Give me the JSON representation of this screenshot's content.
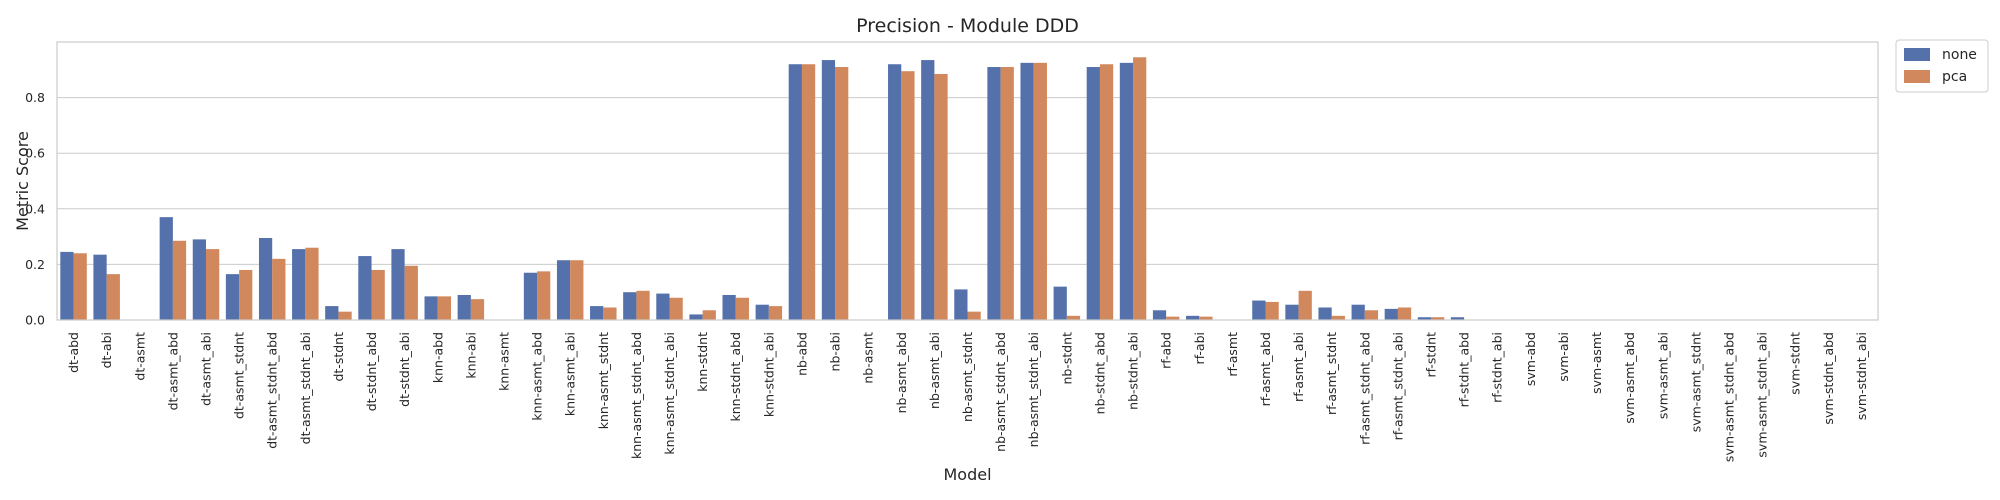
{
  "chart_data": {
    "type": "bar",
    "title": "Precision - Module DDD",
    "xlabel": "Model",
    "ylabel": "Metric Score",
    "ylim": [
      0,
      1.0
    ],
    "yticks": [
      0.0,
      0.2,
      0.4,
      0.6,
      0.8
    ],
    "ytick_labels": [
      "0.0",
      "0.2",
      "0.4",
      "0.6",
      "0.8"
    ],
    "grid": true,
    "legend_position": "outside-top-right",
    "categories": [
      "dt-abd",
      "dt-abi",
      "dt-asmt",
      "dt-asmt_abd",
      "dt-asmt_abi",
      "dt-asmt_stdnt",
      "dt-asmt_stdnt_abd",
      "dt-asmt_stdnt_abi",
      "dt-stdnt",
      "dt-stdnt_abd",
      "dt-stdnt_abi",
      "knn-abd",
      "knn-abi",
      "knn-asmt",
      "knn-asmt_abd",
      "knn-asmt_abi",
      "knn-asmt_stdnt",
      "knn-asmt_stdnt_abd",
      "knn-asmt_stdnt_abi",
      "knn-stdnt",
      "knn-stdnt_abd",
      "knn-stdnt_abi",
      "nb-abd",
      "nb-abi",
      "nb-asmt",
      "nb-asmt_abd",
      "nb-asmt_abi",
      "nb-asmt_stdnt",
      "nb-asmt_stdnt_abd",
      "nb-asmt_stdnt_abi",
      "nb-stdnt",
      "nb-stdnt_abd",
      "nb-stdnt_abi",
      "rf-abd",
      "rf-abi",
      "rf-asmt",
      "rf-asmt_abd",
      "rf-asmt_abi",
      "rf-asmt_stdnt",
      "rf-asmt_stdnt_abd",
      "rf-asmt_stdnt_abi",
      "rf-stdnt",
      "rf-stdnt_abd",
      "rf-stdnt_abi",
      "svm-abd",
      "svm-abi",
      "svm-asmt",
      "svm-asmt_abd",
      "svm-asmt_abi",
      "svm-asmt_stdnt",
      "svm-asmt_stdnt_abd",
      "svm-asmt_stdnt_abi",
      "svm-stdnt",
      "svm-stdnt_abd",
      "svm-stdnt_abi"
    ],
    "series": [
      {
        "name": "none",
        "color": "#5471ab",
        "values": [
          0.245,
          0.235,
          0.0,
          0.37,
          0.29,
          0.165,
          0.295,
          0.255,
          0.05,
          0.23,
          0.255,
          0.085,
          0.09,
          0.0,
          0.17,
          0.215,
          0.05,
          0.1,
          0.095,
          0.02,
          0.09,
          0.055,
          0.92,
          0.935,
          0.0,
          0.92,
          0.935,
          0.11,
          0.91,
          0.925,
          0.12,
          0.91,
          0.925,
          0.035,
          0.015,
          0.0,
          0.07,
          0.055,
          0.045,
          0.055,
          0.04,
          0.01,
          0.01,
          0.0,
          0.0,
          0.0,
          0.0,
          0.0,
          0.0,
          0.0,
          0.0,
          0.0,
          0.0,
          0.0,
          0.0
        ]
      },
      {
        "name": "pca",
        "color": "#d1885c",
        "values": [
          0.24,
          0.165,
          0.0,
          0.285,
          0.255,
          0.18,
          0.22,
          0.26,
          0.03,
          0.18,
          0.195,
          0.085,
          0.075,
          0.0,
          0.175,
          0.215,
          0.045,
          0.105,
          0.08,
          0.035,
          0.08,
          0.05,
          0.92,
          0.91,
          0.0,
          0.895,
          0.885,
          0.03,
          0.91,
          0.925,
          0.015,
          0.92,
          0.945,
          0.012,
          0.012,
          0.0,
          0.065,
          0.105,
          0.015,
          0.035,
          0.045,
          0.01,
          0.0,
          0.0,
          0.0,
          0.0,
          0.0,
          0.0,
          0.0,
          0.0,
          0.0,
          0.0,
          0.0,
          0.0,
          0.0
        ]
      }
    ]
  }
}
